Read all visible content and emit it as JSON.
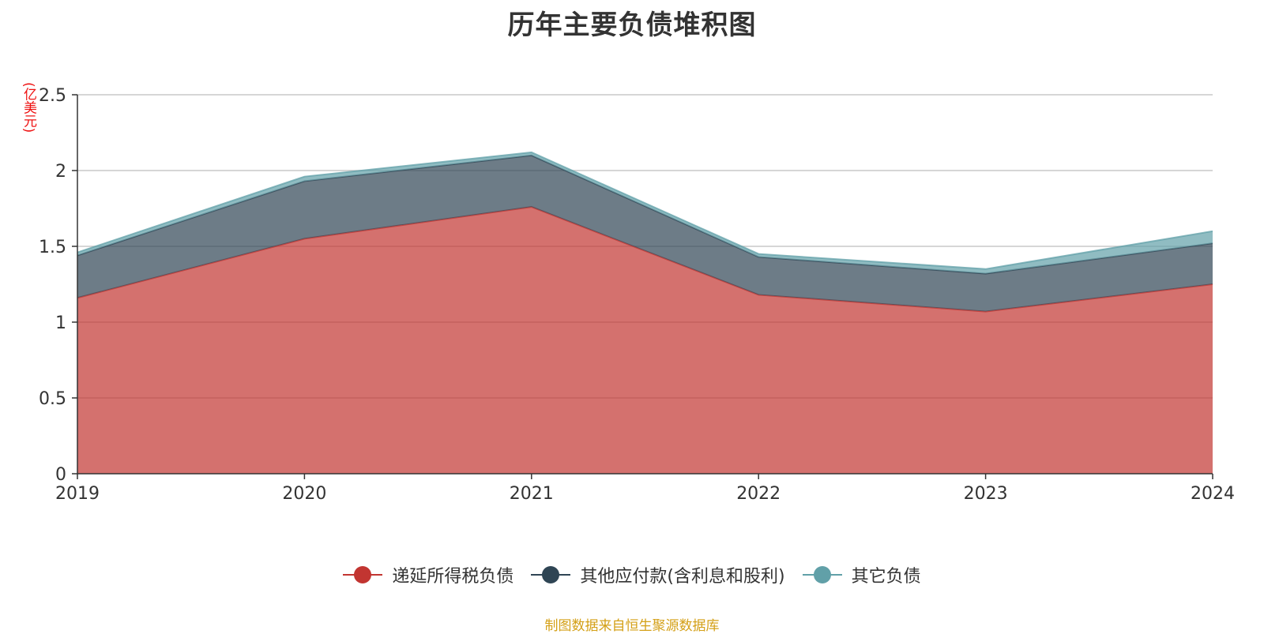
{
  "chart_data": {
    "type": "area",
    "stacked": true,
    "title": "历年主要负债堆积图",
    "y_unit": "(亿美元)",
    "x": [
      "2019",
      "2020",
      "2021",
      "2022",
      "2023",
      "2024"
    ],
    "y_ticks": [
      "0",
      "0.5",
      "1",
      "1.5",
      "2",
      "2.5"
    ],
    "ylim": [
      0,
      2.5
    ],
    "grid": true,
    "legend_position": "bottom",
    "series": [
      {
        "name": "递延所得税负债",
        "color": "#c23531",
        "values": [
          1.16,
          1.55,
          1.76,
          1.18,
          1.07,
          1.25
        ]
      },
      {
        "name": "其他应付款(含利息和股利)",
        "color": "#2f4554",
        "values": [
          0.28,
          0.38,
          0.34,
          0.25,
          0.25,
          0.27
        ]
      },
      {
        "name": "其它负债",
        "color": "#61a0a8",
        "values": [
          0.02,
          0.03,
          0.02,
          0.02,
          0.03,
          0.08
        ]
      }
    ],
    "source": "制图数据来自恒生聚源数据库"
  }
}
